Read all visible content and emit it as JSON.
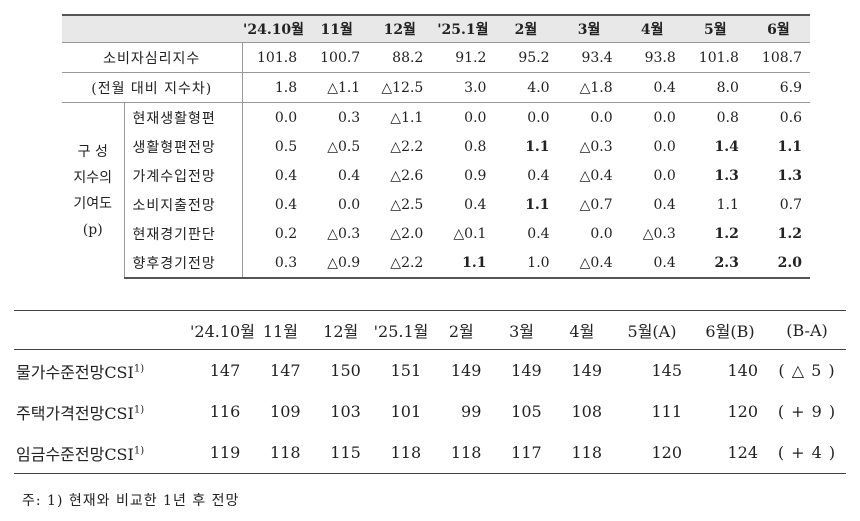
{
  "table1": {
    "headers": [
      "'24.10월",
      "11월",
      "12월",
      "'25.1월",
      "2월",
      "3월",
      "4월",
      "5월",
      "6월"
    ],
    "csi_row": {
      "label": "소비자심리지수",
      "values": [
        "101.8",
        "100.7",
        "88.2",
        "91.2",
        "95.2",
        "93.4",
        "93.8",
        "101.8",
        "108.7"
      ]
    },
    "diff_row": {
      "label": "(전월 대비 지수차)",
      "values": [
        "1.8",
        "△1.1",
        "△12.5",
        "3.0",
        "4.0",
        "△1.8",
        "0.4",
        "8.0",
        "6.9"
      ]
    },
    "group_label_lines": [
      "구 성",
      "지수의",
      "기여도",
      "(p)"
    ],
    "components": [
      {
        "label": "현재생활형편",
        "values": [
          "0.0",
          "0.3",
          "△1.1",
          "0.0",
          "0.0",
          "0.0",
          "0.0",
          "0.8",
          "0.6"
        ]
      },
      {
        "label": "생활형편전망",
        "values": [
          "0.5",
          "△0.5",
          "△2.2",
          "0.8",
          "1.1",
          "△0.3",
          "0.0",
          "1.4",
          "1.1"
        ]
      },
      {
        "label": "가계수입전망",
        "values": [
          "0.4",
          "0.4",
          "△2.6",
          "0.9",
          "0.4",
          "△0.4",
          "0.0",
          "1.3",
          "1.3"
        ]
      },
      {
        "label": "소비지출전망",
        "values": [
          "0.4",
          "0.0",
          "△2.5",
          "0.4",
          "1.1",
          "△0.7",
          "0.4",
          "1.1",
          "0.7"
        ]
      },
      {
        "label": "현재경기판단",
        "values": [
          "0.2",
          "△0.3",
          "△2.0",
          "△0.1",
          "0.4",
          "0.0",
          "△0.3",
          "1.2",
          "1.2"
        ]
      },
      {
        "label": "향후경기전망",
        "values": [
          "0.3",
          "△0.9",
          "△2.2",
          "1.1",
          "1.0",
          "△0.4",
          "0.4",
          "2.3",
          "2.0"
        ]
      }
    ]
  },
  "table2": {
    "headers": [
      "'24.10월",
      "11월",
      "12월",
      "'25.1월",
      "2월",
      "3월",
      "4월",
      "5월(A)",
      "6월(B)",
      "(B-A)"
    ],
    "rows": [
      {
        "label": "물가수준전망CSI",
        "sup": "1)",
        "values": [
          "147",
          "147",
          "150",
          "151",
          "149",
          "149",
          "149",
          "145",
          "140"
        ],
        "diff": "( △ 5 )"
      },
      {
        "label": "주택가격전망CSI",
        "sup": "1)",
        "values": [
          "116",
          "109",
          "103",
          "101",
          "99",
          "105",
          "108",
          "111",
          "120"
        ],
        "diff": "( + 9 )"
      },
      {
        "label": "임금수준전망CSI",
        "sup": "1)",
        "values": [
          "119",
          "118",
          "115",
          "118",
          "118",
          "117",
          "118",
          "120",
          "124"
        ],
        "diff": "( + 4 )"
      }
    ]
  },
  "note": "주: 1) 현재와 비교한 1년 후 전망"
}
